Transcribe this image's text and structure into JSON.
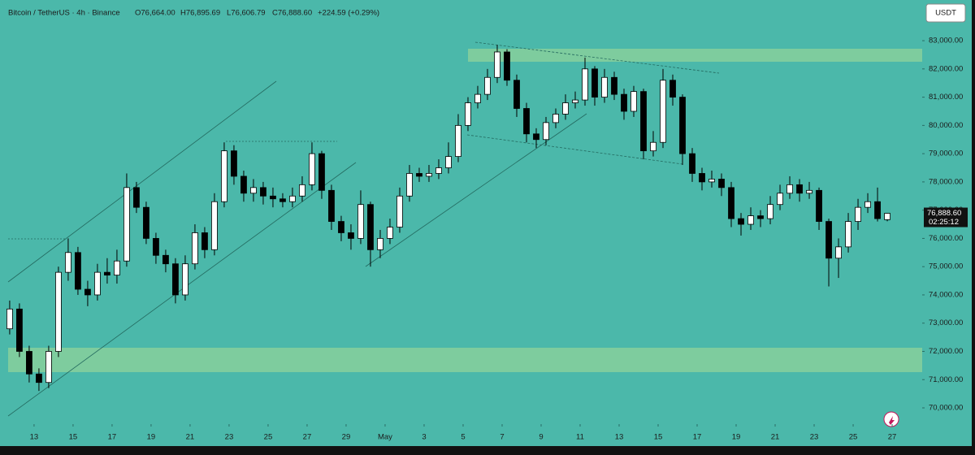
{
  "header": {
    "symbol": "Bitcoin / TetherUS · 4h · Binance",
    "open": "O76,664.00",
    "high": "H76,895.69",
    "low": "L76,606.79",
    "close": "C76,888.60",
    "change": "+224.59 (+0.29%)",
    "currency_button": "USDT",
    "countdown": "02:25:12"
  },
  "chart_data": {
    "type": "candlestick",
    "up_color": "#ffffff",
    "down_color": "#000000",
    "wick_color": "#000000",
    "grid": false,
    "x": [
      -1.25,
      -0.75,
      -0.25,
      0.25,
      0.75,
      1.25,
      1.75,
      2.25,
      2.75,
      3.25,
      3.75,
      4.25,
      4.75,
      5.25,
      5.75,
      6.25,
      6.75,
      7.25,
      7.75,
      8.25,
      8.75,
      9.25,
      9.75,
      10.25,
      10.75,
      11.25,
      11.75,
      12.25,
      12.75,
      13.25,
      13.75,
      14.25,
      14.75,
      15.25,
      15.75,
      16.25,
      16.75,
      17.25,
      17.75,
      18.25,
      18.75,
      19.25,
      19.75,
      20.25,
      20.75,
      21.25,
      21.75,
      22.25,
      22.75,
      23.25,
      23.75,
      24.25,
      24.75,
      25.25,
      25.75,
      26.25,
      26.75,
      27.25,
      27.75,
      28.25,
      28.75,
      29.25,
      29.75,
      30.25,
      30.75,
      31.25,
      31.75,
      32.25,
      32.75,
      33.25,
      33.75,
      34.25,
      34.75,
      35.25,
      35.75,
      36.25,
      36.75,
      37.25,
      37.75,
      38.25,
      38.75,
      39.25,
      39.75,
      40.25,
      40.75,
      41.25,
      41.75,
      42.25,
      42.75,
      43.25,
      43.75
    ],
    "open": [
      72800,
      73500,
      72000,
      71200,
      70900,
      72000,
      74800,
      75500,
      74200,
      74000,
      74800,
      74700,
      75200,
      77800,
      77100,
      76000,
      75400,
      75100,
      74000,
      75100,
      76200,
      75600,
      77300,
      79100,
      78200,
      77600,
      77800,
      77500,
      77400,
      77300,
      77500,
      77900,
      79000,
      77700,
      76600,
      76200,
      76000,
      77200,
      75600,
      76000,
      76400,
      77500,
      78300,
      78200,
      78300,
      78500,
      78900,
      80000,
      80800,
      81100,
      81700,
      82600,
      81600,
      80600,
      79700,
      79500,
      80100,
      80400,
      80800,
      80900,
      82000,
      81000,
      81700,
      81100,
      80500,
      81200,
      79100,
      79400,
      81600,
      81000,
      79000,
      78300,
      78000,
      78100,
      77800,
      76700,
      76500,
      76800,
      76700,
      77200,
      77600,
      77900,
      77600,
      77700,
      76600,
      75300,
      75700,
      76600,
      77100,
      77300,
      76664
    ],
    "high": [
      73800,
      73700,
      72200,
      71400,
      72200,
      75000,
      76000,
      75700,
      74500,
      75100,
      75300,
      75600,
      78300,
      78000,
      77300,
      76200,
      75600,
      75300,
      75400,
      76500,
      76400,
      77600,
      79400,
      79300,
      78400,
      78100,
      78000,
      77800,
      77600,
      77800,
      78200,
      79400,
      79100,
      77900,
      76800,
      76500,
      77700,
      77300,
      76300,
      76700,
      77800,
      78600,
      78500,
      78600,
      78800,
      79400,
      80400,
      81000,
      81400,
      82000,
      82850,
      82700,
      81800,
      80800,
      79900,
      80300,
      80600,
      81100,
      81200,
      82400,
      82100,
      82000,
      81900,
      81300,
      81400,
      81300,
      79800,
      82000,
      81800,
      81100,
      79200,
      78500,
      78400,
      78300,
      78000,
      76900,
      77100,
      77000,
      77500,
      77900,
      78200,
      78100,
      78000,
      77800,
      76700,
      76000,
      76900,
      77400,
      77600,
      77800,
      76895.69
    ],
    "low": [
      72600,
      71800,
      70900,
      70600,
      70700,
      71800,
      74500,
      74000,
      73600,
      73800,
      74400,
      74400,
      75000,
      76900,
      75800,
      75100,
      74800,
      73700,
      73800,
      74900,
      75300,
      75400,
      77100,
      77900,
      77300,
      77300,
      77200,
      77100,
      77100,
      77100,
      77300,
      77700,
      77400,
      76300,
      75900,
      75600,
      75800,
      75000,
      75300,
      75800,
      76200,
      77300,
      78000,
      78000,
      78100,
      78300,
      78700,
      79800,
      80600,
      80900,
      81500,
      81400,
      80300,
      79400,
      79200,
      79300,
      79900,
      80200,
      80600,
      80700,
      80700,
      80800,
      80900,
      80200,
      80300,
      78800,
      78900,
      79200,
      80700,
      78600,
      78000,
      77700,
      77800,
      77500,
      76400,
      76100,
      76300,
      76400,
      76500,
      77000,
      77400,
      77300,
      77400,
      76300,
      74300,
      74600,
      75500,
      76300,
      76900,
      76600,
      76606.79
    ],
    "close": [
      73500,
      72000,
      71200,
      70900,
      72000,
      74800,
      75500,
      74200,
      74000,
      74800,
      74700,
      75200,
      77800,
      77100,
      76000,
      75400,
      75100,
      74000,
      75100,
      76200,
      75600,
      77300,
      79100,
      78200,
      77600,
      77800,
      77500,
      77400,
      77300,
      77500,
      77900,
      79000,
      77700,
      76600,
      76200,
      76000,
      77200,
      75600,
      76000,
      76400,
      77500,
      78300,
      78200,
      78300,
      78500,
      78900,
      80000,
      80800,
      81100,
      81700,
      82600,
      81600,
      80600,
      79700,
      79500,
      80100,
      80400,
      80800,
      80900,
      82000,
      81000,
      81700,
      81100,
      80500,
      81200,
      79100,
      79400,
      81600,
      81000,
      79000,
      78300,
      78000,
      78100,
      77800,
      76700,
      76500,
      76800,
      76700,
      77200,
      77600,
      77900,
      77600,
      77700,
      76600,
      75300,
      75700,
      76600,
      77100,
      77300,
      76700,
      76888.6
    ],
    "xlim": [
      -1.33,
      45.54
    ],
    "xticks": [
      {
        "value": 0,
        "label": "13"
      },
      {
        "value": 2,
        "label": "15"
      },
      {
        "value": 4,
        "label": "17"
      },
      {
        "value": 6,
        "label": "19"
      },
      {
        "value": 8,
        "label": "21"
      },
      {
        "value": 10,
        "label": "23"
      },
      {
        "value": 12,
        "label": "25"
      },
      {
        "value": 14,
        "label": "27"
      },
      {
        "value": 16,
        "label": "29"
      },
      {
        "value": 18,
        "label": "May"
      },
      {
        "value": 20,
        "label": "3"
      },
      {
        "value": 22,
        "label": "5"
      },
      {
        "value": 24,
        "label": "7"
      },
      {
        "value": 26,
        "label": "9"
      },
      {
        "value": 28,
        "label": "11"
      },
      {
        "value": 30,
        "label": "13"
      },
      {
        "value": 32,
        "label": "15"
      },
      {
        "value": 34,
        "label": "17"
      },
      {
        "value": 36,
        "label": "19"
      },
      {
        "value": 38,
        "label": "21"
      },
      {
        "value": 40,
        "label": "23"
      },
      {
        "value": 42,
        "label": "25"
      },
      {
        "value": 44,
        "label": "27"
      }
    ],
    "ylim": [
      69425,
      84210
    ],
    "yticks": [
      {
        "value": 70000,
        "label": "70,000.00"
      },
      {
        "value": 71000,
        "label": "71,000.00"
      },
      {
        "value": 72000,
        "label": "72,000.00"
      },
      {
        "value": 73000,
        "label": "73,000.00"
      },
      {
        "value": 74000,
        "label": "74,000.00"
      },
      {
        "value": 75000,
        "label": "75,000.00"
      },
      {
        "value": 76000,
        "label": "76,000.00"
      },
      {
        "value": 77000,
        "label": "77,000.00"
      },
      {
        "value": 78000,
        "label": "78,000.00"
      },
      {
        "value": 79000,
        "label": "79,000.00"
      },
      {
        "value": 80000,
        "label": "80,000.00"
      },
      {
        "value": 81000,
        "label": "81,000.00"
      },
      {
        "value": 82000,
        "label": "82,000.00"
      },
      {
        "value": 83000,
        "label": "83,000.00"
      }
    ],
    "last_price": {
      "value": 76888.6,
      "label": "76,888.60"
    }
  }
}
